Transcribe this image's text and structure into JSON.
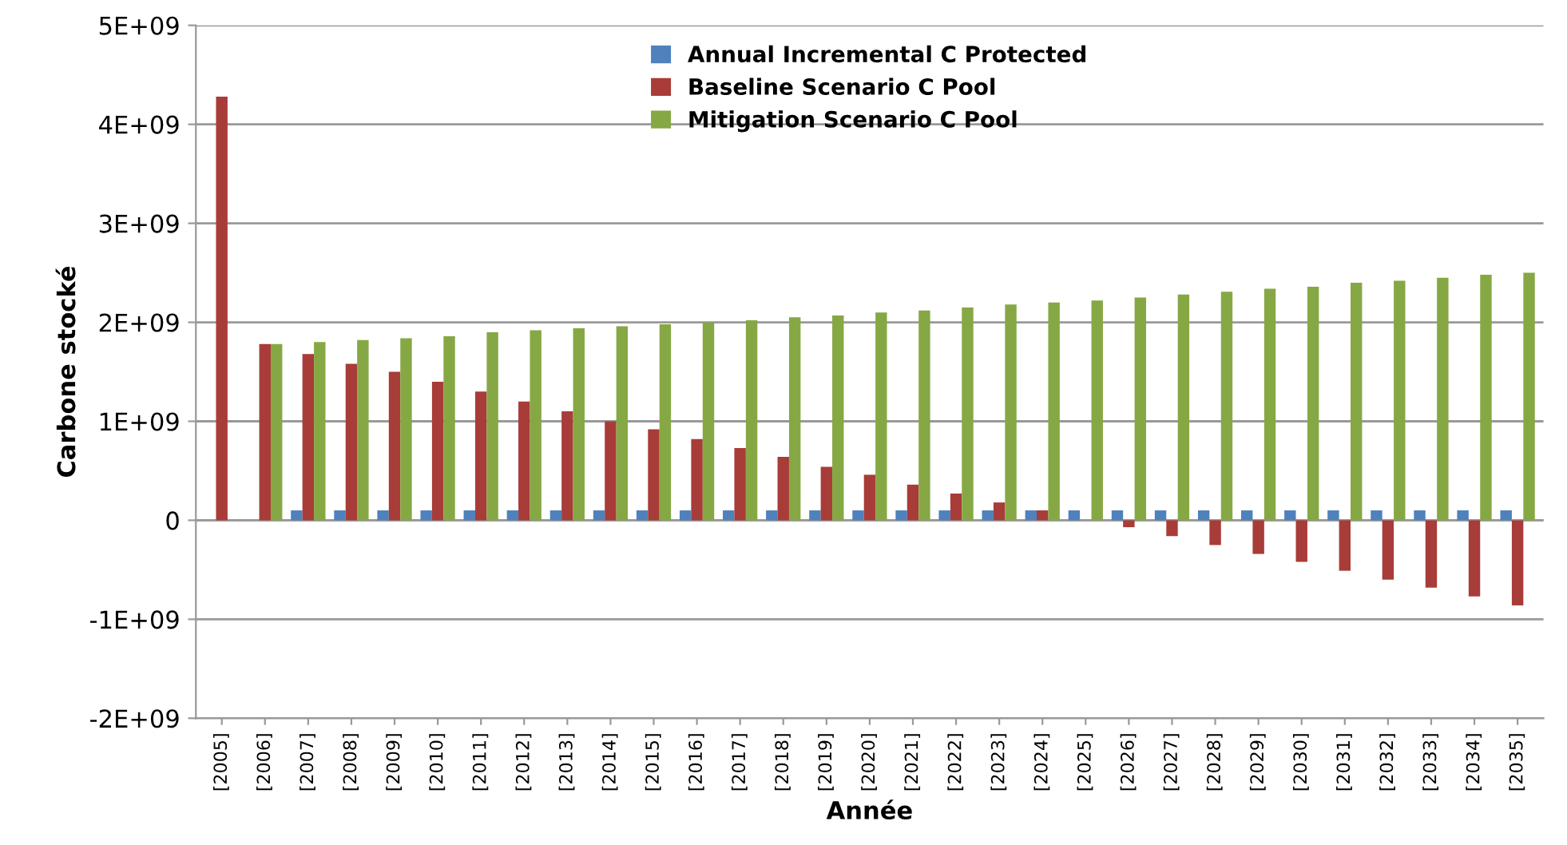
{
  "chart_data": {
    "type": "bar",
    "xlabel": "Année",
    "ylabel": "Carbone stocké",
    "categories": [
      "[2005]",
      "[2006]",
      "[2007]",
      "[2008]",
      "[2009]",
      "[2010]",
      "[2011]",
      "[2012]",
      "[2013]",
      "[2014]",
      "[2015]",
      "[2016]",
      "[2017]",
      "[2018]",
      "[2019]",
      "[2020]",
      "[2021]",
      "[2022]",
      "[2023]",
      "[2024]",
      "[2025]",
      "[2026]",
      "[2027]",
      "[2028]",
      "[2029]",
      "[2030]",
      "[2031]",
      "[2032]",
      "[2033]",
      "[2034]",
      "[2035]"
    ],
    "series": [
      {
        "name": "Annual Incremental C Protected",
        "color": "#4f81bd",
        "values": [
          null,
          null,
          100000000.0,
          100000000.0,
          100000000.0,
          100000000.0,
          100000000.0,
          100000000.0,
          100000000.0,
          100000000.0,
          100000000.0,
          100000000.0,
          100000000.0,
          100000000.0,
          100000000.0,
          100000000.0,
          100000000.0,
          100000000.0,
          100000000.0,
          100000000.0,
          100000000.0,
          100000000.0,
          100000000.0,
          100000000.0,
          100000000.0,
          100000000.0,
          100000000.0,
          100000000.0,
          100000000.0,
          100000000.0,
          100000000.0
        ]
      },
      {
        "name": "Baseline Scenario C Pool",
        "color": "#a83c38",
        "values": [
          4280000000.0,
          1780000000.0,
          1680000000.0,
          1580000000.0,
          1500000000.0,
          1400000000.0,
          1300000000.0,
          1200000000.0,
          1100000000.0,
          1000000000.0,
          920000000.0,
          820000000.0,
          730000000.0,
          640000000.0,
          540000000.0,
          460000000.0,
          360000000.0,
          270000000.0,
          180000000.0,
          100000000.0,
          null,
          -70000000.0,
          -160000000.0,
          -250000000.0,
          -340000000.0,
          -420000000.0,
          -510000000.0,
          -600000000.0,
          -680000000.0,
          -770000000.0,
          -860000000.0
        ]
      },
      {
        "name": "Mitigation Scenario C Pool",
        "color": "#86a844",
        "values": [
          null,
          1780000000.0,
          1800000000.0,
          1820000000.0,
          1840000000.0,
          1860000000.0,
          1900000000.0,
          1920000000.0,
          1940000000.0,
          1960000000.0,
          1980000000.0,
          2000000000.0,
          2020000000.0,
          2050000000.0,
          2070000000.0,
          2100000000.0,
          2120000000.0,
          2150000000.0,
          2180000000.0,
          2200000000.0,
          2220000000.0,
          2250000000.0,
          2280000000.0,
          2310000000.0,
          2340000000.0,
          2360000000.0,
          2400000000.0,
          2420000000.0,
          2450000000.0,
          2480000000.0,
          2500000000.0
        ]
      }
    ],
    "ylim": [
      -2000000000.0,
      5000000000.0
    ],
    "yticks": [
      {
        "value": -2000000000.0,
        "label": "-2E+09"
      },
      {
        "value": -1000000000.0,
        "label": "-1E+09"
      },
      {
        "value": 0,
        "label": "0"
      },
      {
        "value": 1000000000.0,
        "label": "1E+09"
      },
      {
        "value": 2000000000.0,
        "label": "2E+09"
      },
      {
        "value": 3000000000.0,
        "label": "3E+09"
      },
      {
        "value": 4000000000.0,
        "label": "4E+09"
      },
      {
        "value": 5000000000.0,
        "label": "5E+09"
      }
    ],
    "grid": "y",
    "legend": "top"
  }
}
